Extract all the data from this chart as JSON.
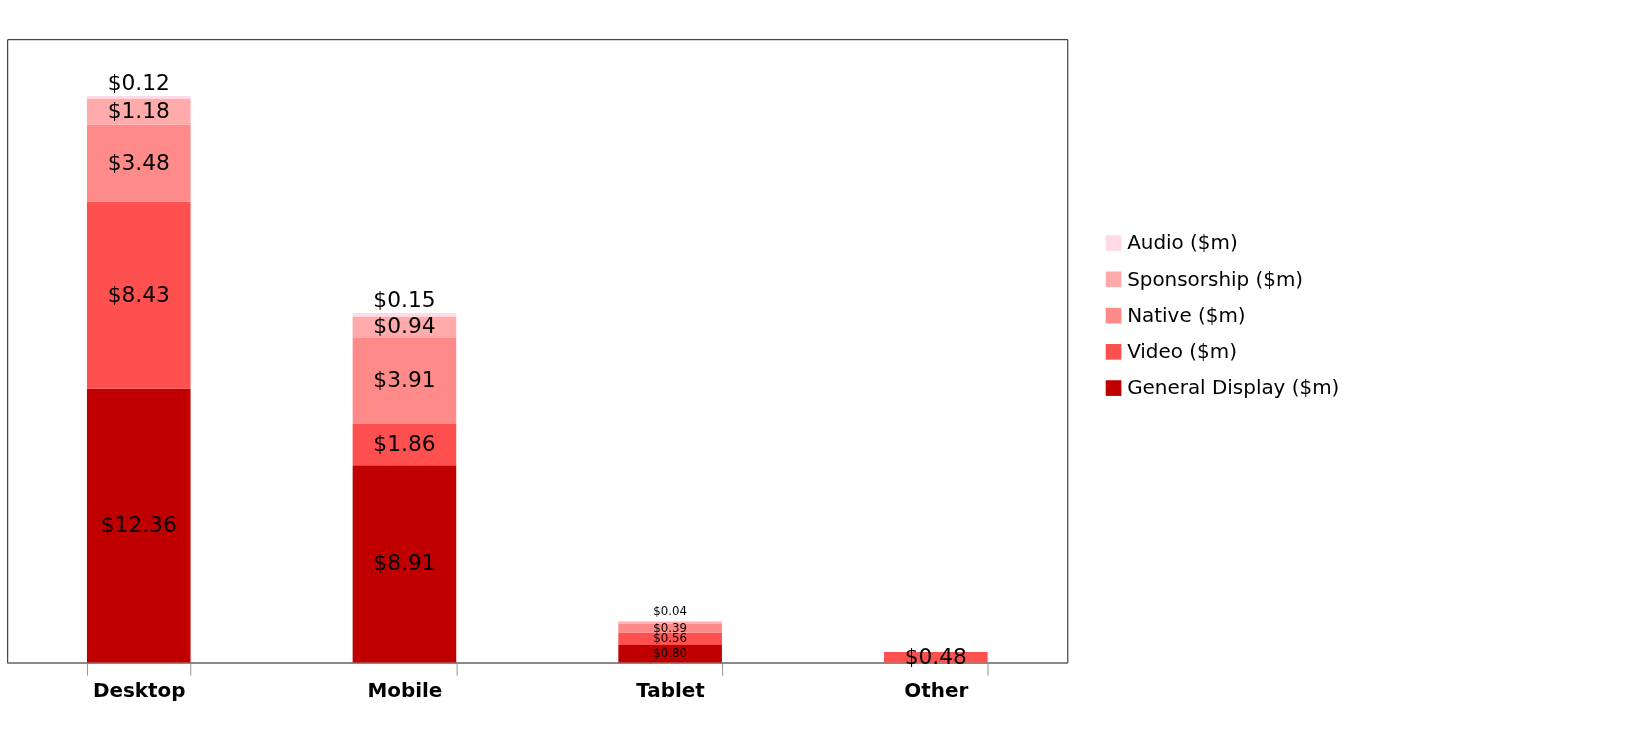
{
  "chart_data": {
    "type": "bar",
    "stacked": true,
    "categories": [
      "Desktop",
      "Mobile",
      "Tablet",
      "Other"
    ],
    "series": [
      {
        "name": "General Display ($m)",
        "color": "#c00000",
        "values": [
          12.36,
          8.91,
          0.8,
          null
        ],
        "value_labels": [
          "$12.36",
          "$8.91",
          "$0.80",
          null
        ]
      },
      {
        "name": "Video ($m)",
        "color": "#ff5050",
        "values": [
          8.43,
          1.86,
          0.56,
          0.48
        ],
        "value_labels": [
          "$8.43",
          "$1.86",
          "$0.56",
          "$0.48"
        ]
      },
      {
        "name": "Native ($m)",
        "color": "#ff8a8a",
        "values": [
          3.48,
          3.91,
          0.39,
          null
        ],
        "value_labels": [
          "$3.48",
          "$3.91",
          "$0.39",
          null
        ]
      },
      {
        "name": "Sponsorship ($m)",
        "color": "#ffabab",
        "values": [
          1.18,
          0.94,
          0.1,
          null
        ],
        "value_labels": [
          "$1.18",
          "$0.94",
          null,
          null
        ]
      },
      {
        "name": "Audio ($m)",
        "color": "#ffd9e6",
        "values": [
          0.12,
          0.15,
          0.04,
          null
        ],
        "value_labels": [
          "$0.12",
          "$0.15",
          "$0.04",
          null
        ]
      }
    ],
    "legend": "right"
  }
}
